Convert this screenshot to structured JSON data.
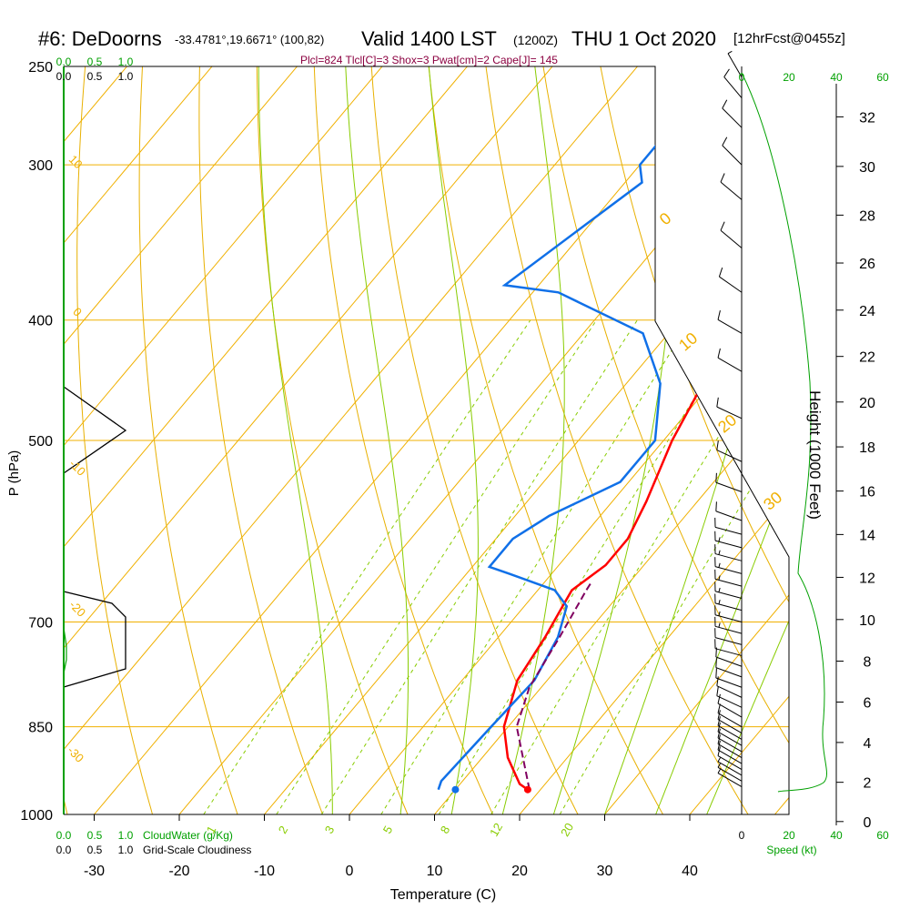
{
  "header": {
    "station": "#6: DeDoorns",
    "coords": "-33.4781°,19.6671° (100,82)",
    "valid": "Valid 1400 LST",
    "utc": "(1200Z)",
    "date": "THU 1 Oct 2020",
    "forecast": "[12hrFcst@0455z]",
    "stats": "Plcl=824 Tlcl[C]=3 Shox=3 Pwat[cm]=2 Cape[J]= 145"
  },
  "colors": {
    "isotherm": "#f0b000",
    "dry_adiabat": "#e8b000",
    "moist_adiabat": "#88cc00",
    "mixing_ratio": "#88cc00",
    "temperature": "#ff0000",
    "dewpoint": "#1070e8",
    "parcel": "#800060",
    "cloud": "#00a000",
    "stats": "#8b0040"
  },
  "chart_data": {
    "type": "skew-t",
    "xlabel": "Temperature (C)",
    "ylabel": "P (hPa)",
    "right_ylabel": "Height (1000 Feet)",
    "x_ticks": [
      -30,
      -20,
      -10,
      0,
      10,
      20,
      30,
      40
    ],
    "pressure_ticks": [
      250,
      300,
      400,
      500,
      700,
      850,
      1000
    ],
    "height_ticks": [
      0,
      2,
      4,
      6,
      8,
      10,
      12,
      14,
      16,
      18,
      20,
      22,
      24,
      26,
      28,
      30,
      32
    ],
    "isotherm_labels": [
      0,
      10,
      20,
      30
    ],
    "left_isotherm_labels": [
      10,
      0,
      -10,
      -20,
      -30
    ],
    "mixing_ratio_labels": [
      1,
      2,
      3,
      5,
      8,
      12,
      20
    ],
    "cloud_top_scale": [
      "0.0",
      "0.5",
      "1.0"
    ],
    "cloud_water_label": "CloudWater (g/Kg)",
    "cloudiness_label": "Grid-Scale Cloudiness",
    "speed_label": "Speed (kt)",
    "speed_ticks": [
      0,
      20,
      40,
      60
    ],
    "series": [
      {
        "name": "Temperature",
        "points": [
          [
            18.5,
            955
          ],
          [
            17,
            945
          ],
          [
            13,
            900
          ],
          [
            9.5,
            850
          ],
          [
            6.5,
            780
          ],
          [
            5.5,
            720
          ],
          [
            4.5,
            680
          ],
          [
            4,
            660
          ],
          [
            5.5,
            630
          ],
          [
            5.5,
            600
          ],
          [
            4,
            560
          ],
          [
            1,
            500
          ],
          [
            -1,
            450
          ],
          [
            -1.3,
            400
          ],
          [
            -1.5,
            350
          ],
          [
            -1.2,
            310
          ],
          [
            0.5,
            280
          ],
          [
            2.5,
            255
          ]
        ]
      },
      {
        "name": "Dewpoint",
        "points": [
          [
            8,
            955
          ],
          [
            7.5,
            940
          ],
          [
            8,
            850
          ],
          [
            8.5,
            780
          ],
          [
            7,
            720
          ],
          [
            5,
            680
          ],
          [
            2,
            660
          ],
          [
            -5,
            640
          ],
          [
            -8,
            632
          ],
          [
            -8,
            600
          ],
          [
            -6,
            575
          ],
          [
            -1,
            540
          ],
          [
            -1,
            500
          ],
          [
            -6,
            450
          ],
          [
            -13,
            410
          ],
          [
            -27,
            380
          ],
          [
            -34,
            375
          ],
          [
            -28,
            310
          ],
          [
            -30,
            300
          ],
          [
            -30,
            285
          ],
          [
            -29,
            265
          ]
        ]
      },
      {
        "name": "Parcel",
        "points": [
          [
            18.7,
            955
          ],
          [
            11,
            850
          ],
          [
            8.6,
            790
          ],
          [
            7.2,
            720
          ],
          [
            5.7,
            660
          ],
          [
            5.5,
            650
          ]
        ]
      }
    ],
    "surface_dewpoint": [
      10,
      955
    ],
    "winds": [
      {
        "pressure": 950,
        "speed": 8,
        "dir": 300
      },
      {
        "pressure": 940,
        "speed": 9,
        "dir": 300
      },
      {
        "pressure": 930,
        "speed": 9,
        "dir": 300
      },
      {
        "pressure": 920,
        "speed": 10,
        "dir": 300
      },
      {
        "pressure": 910,
        "speed": 10,
        "dir": 300
      },
      {
        "pressure": 900,
        "speed": 10,
        "dir": 300
      },
      {
        "pressure": 890,
        "speed": 11,
        "dir": 300
      },
      {
        "pressure": 880,
        "speed": 11,
        "dir": 300
      },
      {
        "pressure": 870,
        "speed": 11,
        "dir": 300
      },
      {
        "pressure": 860,
        "speed": 12,
        "dir": 300
      },
      {
        "pressure": 850,
        "speed": 12,
        "dir": 300
      },
      {
        "pressure": 835,
        "speed": 12,
        "dir": 300
      },
      {
        "pressure": 820,
        "speed": 12,
        "dir": 295
      },
      {
        "pressure": 805,
        "speed": 13,
        "dir": 295
      },
      {
        "pressure": 790,
        "speed": 13,
        "dir": 290
      },
      {
        "pressure": 775,
        "speed": 13,
        "dir": 290
      },
      {
        "pressure": 760,
        "speed": 14,
        "dir": 290
      },
      {
        "pressure": 745,
        "speed": 14,
        "dir": 285
      },
      {
        "pressure": 730,
        "speed": 14,
        "dir": 285
      },
      {
        "pressure": 715,
        "speed": 15,
        "dir": 285
      },
      {
        "pressure": 700,
        "speed": 15,
        "dir": 285
      },
      {
        "pressure": 685,
        "speed": 15,
        "dir": 285
      },
      {
        "pressure": 670,
        "speed": 15,
        "dir": 285
      },
      {
        "pressure": 655,
        "speed": 15,
        "dir": 285
      },
      {
        "pressure": 640,
        "speed": 15,
        "dir": 285
      },
      {
        "pressure": 625,
        "speed": 15,
        "dir": 285
      },
      {
        "pressure": 610,
        "speed": 15,
        "dir": 285
      },
      {
        "pressure": 595,
        "speed": 14,
        "dir": 285
      },
      {
        "pressure": 580,
        "speed": 13,
        "dir": 290
      },
      {
        "pressure": 550,
        "speed": 12,
        "dir": 290
      },
      {
        "pressure": 520,
        "speed": 11,
        "dir": 295
      },
      {
        "pressure": 480,
        "speed": 11,
        "dir": 295
      },
      {
        "pressure": 440,
        "speed": 11,
        "dir": 300
      },
      {
        "pressure": 410,
        "speed": 10,
        "dir": 300
      },
      {
        "pressure": 380,
        "speed": 10,
        "dir": 305
      },
      {
        "pressure": 350,
        "speed": 10,
        "dir": 310
      },
      {
        "pressure": 320,
        "speed": 11,
        "dir": 310
      },
      {
        "pressure": 300,
        "speed": 11,
        "dir": 315
      },
      {
        "pressure": 280,
        "speed": 11,
        "dir": 315
      },
      {
        "pressure": 265,
        "speed": 10,
        "dir": 320
      },
      {
        "pressure": 255,
        "speed": 6,
        "dir": 330
      }
    ]
  }
}
